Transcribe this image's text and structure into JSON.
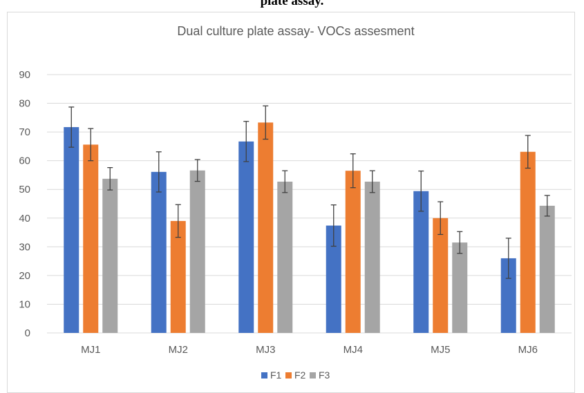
{
  "page": {
    "caption": "plate assay."
  },
  "chart_data": {
    "type": "bar",
    "title": "Dual culture plate assay- VOCs assesment",
    "xlabel": "",
    "ylabel": "",
    "ylim": [
      0,
      90
    ],
    "yticks": [
      0,
      10,
      20,
      30,
      40,
      50,
      60,
      70,
      80,
      90
    ],
    "grid": true,
    "legend_position": "bottom",
    "categories": [
      "MJ1",
      "MJ2",
      "MJ3",
      "MJ4",
      "MJ5",
      "MJ6"
    ],
    "series": [
      {
        "name": "F1",
        "color": "#4472c4",
        "values": [
          71.7,
          56.1,
          66.7,
          37.4,
          49.4,
          26.0
        ],
        "errors": [
          7.0,
          7.0,
          7.0,
          7.2,
          7.0,
          7.0
        ]
      },
      {
        "name": "F2",
        "color": "#ed7d31",
        "values": [
          65.6,
          39.0,
          73.3,
          56.5,
          40.0,
          63.1
        ],
        "errors": [
          5.6,
          5.7,
          5.8,
          5.9,
          5.7,
          5.7
        ]
      },
      {
        "name": "F3",
        "color": "#a5a5a5",
        "values": [
          53.7,
          56.6,
          52.7,
          52.7,
          31.5,
          44.3
        ],
        "errors": [
          3.9,
          3.8,
          3.8,
          3.8,
          3.8,
          3.6
        ]
      }
    ]
  }
}
